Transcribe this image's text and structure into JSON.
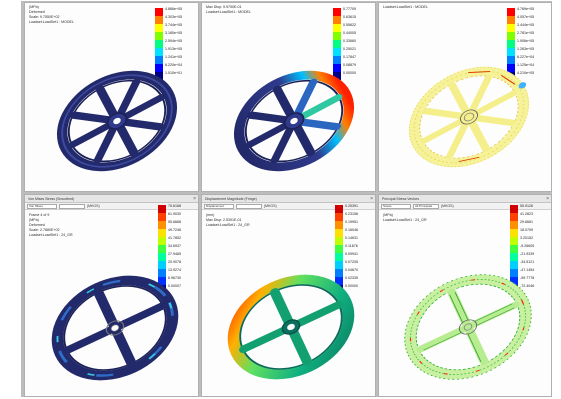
{
  "panels": [
    {
      "info_lines": [
        "(MPa)",
        "Deformed",
        "Scale: 9.7550E+02",
        "Loadset:LoadSet1 : MODEL"
      ],
      "legend_values": [
        "4.866e+05",
        "4.303e+05",
        "3.744e+05",
        "3.180e+05",
        "2.594e+05",
        "1.913e+05",
        "1.241e+05",
        "6.220e+04",
        "1.010e+01"
      ]
    },
    {
      "info_lines": [
        "Max Disp: 9.9750E-01",
        "Loadset:LoadSet1 : MODEL"
      ],
      "legend_values": [
        "0.77709",
        "0.63615",
        "0.55622",
        "0.44005",
        "0.33660",
        "0.25021",
        "0.17847",
        "0.08879",
        "0.00000"
      ]
    },
    {
      "info_lines": [
        "Loadset:LoadSet1 : MODEL"
      ],
      "legend_values": [
        "4.769e+05",
        "4.057e+05",
        "3.444e+05",
        "2.781e+05",
        "1.906e+05",
        "1.263e+05",
        "6.227e+04",
        "1.125e+04",
        "4.210e+05"
      ]
    },
    {
      "title": "Von Mises Stress (Smoothed)",
      "toolbar": {
        "select1": "Von Mises",
        "select2": "",
        "unit": "(MKGS)"
      },
      "info_lines": [
        "Frame 4 of 9",
        "(MPa)",
        "Deformed",
        "Scale: 2.7880E+02",
        "Loadset:LoadSet1 : 24_GR"
      ],
      "legend_values": [
        "75.6168",
        "61.9030",
        "55.6668",
        "49.7246",
        "41.7852",
        "34.6937",
        "27.9465",
        "20.9078",
        "13.9274",
        "6.96730",
        "0.00007"
      ]
    },
    {
      "title": "Displacement Magnitude (Fringe)",
      "toolbar": {
        "select1": "Displacement",
        "select2": "",
        "unit": "(MKGS)"
      },
      "info_lines": [
        "(mm)",
        "Max Disp: 2.5391E-01",
        "Loadset:LoadSet1 : 24_GR"
      ],
      "legend_values": [
        "0.25391",
        "0.23156",
        "0.19951",
        "0.16046",
        "0.14631",
        "0.11676",
        "0.09941",
        "0.07205",
        "0.04670",
        "0.02335",
        "0.00000"
      ]
    },
    {
      "title": "Principal Stress Vectors",
      "toolbar": {
        "select1": "Stress",
        "select2": "All Principals",
        "unit": "(MKGS)"
      },
      "info_lines": [
        "(MPa)",
        "Loadset:LoadSet1 : 24_GR"
      ],
      "legend_values": [
        "55.9126",
        "41.2823",
        "29.6661",
        "18.0709",
        "3.20152",
        "-9.26605",
        "-21.9339",
        "-34.5121",
        "-47.1454",
        "-59.7778",
        "-72.4046"
      ]
    }
  ],
  "colors": {
    "legend9": [
      "#ff0000",
      "#ff8000",
      "#ffff00",
      "#80ff00",
      "#00ff80",
      "#00e0ff",
      "#0080ff",
      "#0000ff",
      "#000080"
    ],
    "legend11": [
      "#d00000",
      "#ff4000",
      "#ff9000",
      "#ffe000",
      "#c0ff00",
      "#40ff40",
      "#00ffa0",
      "#00d0ff",
      "#0080ff",
      "#0030ff",
      "#000090"
    ],
    "wheel_dark": "#232a6b",
    "wheel_mid": "#2f3a8c"
  }
}
